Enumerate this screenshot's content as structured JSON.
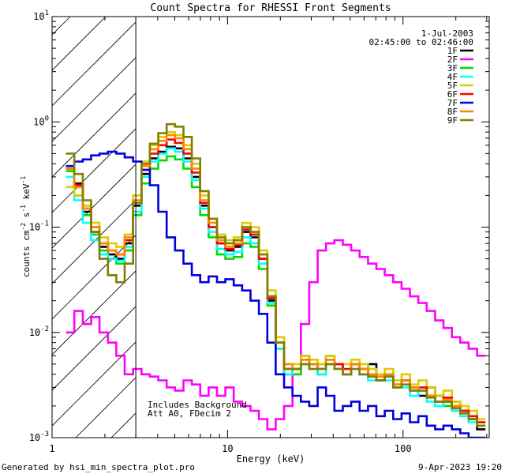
{
  "chart_data": {
    "type": "line",
    "title": "Count Spectra for RHESSI Front Segments",
    "xlabel": "Energy (keV)",
    "ylabel": "counts cm",
    "ylabel_sup1": "-2",
    "ylabel_mid": " s",
    "ylabel_sup2": "-1",
    "ylabel_end": " keV",
    "ylabel_sup3": "-1",
    "x_scale": "log",
    "y_scale": "log",
    "xlim": [
      1.0,
      310
    ],
    "ylim": [
      0.001,
      10
    ],
    "x_ticks": [
      "1",
      "10",
      "100"
    ],
    "y_ticks": [
      {
        "base": "10",
        "exp": "-3"
      },
      {
        "base": "10",
        "exp": "-2"
      },
      {
        "base": "10",
        "exp": "-1"
      },
      {
        "base": "10",
        "exp": "0"
      },
      {
        "base": "10",
        "exp": "1"
      }
    ],
    "date": "1-Jul-2003",
    "time_range": "02:45:00 to 02:46:00",
    "annotations": [
      "Includes Background",
      "Att A0, FDecim 2"
    ],
    "hatched_region_keV": [
      1.0,
      3.0
    ],
    "footer_left": "Generated by hsi_min_spectra_plot.pro",
    "footer_right": "9-Apr-2023 19:20",
    "series": [
      {
        "name": "1F",
        "color": "#000000",
        "values": [
          0.36,
          0.26,
          0.14,
          0.09,
          0.065,
          0.055,
          0.05,
          0.07,
          0.16,
          0.32,
          0.45,
          0.52,
          0.58,
          0.56,
          0.45,
          0.3,
          0.16,
          0.1,
          0.07,
          0.06,
          0.065,
          0.09,
          0.08,
          0.05,
          0.02,
          0.008,
          0.004,
          0.0045,
          0.006,
          0.005,
          0.004,
          0.006,
          0.005,
          0.004,
          0.005,
          0.004,
          0.005,
          0.0035,
          0.004,
          0.003,
          0.0035,
          0.003,
          0.0025,
          0.003,
          0.0025,
          0.0022,
          0.002,
          0.0018,
          0.0015,
          0.0012
        ]
      },
      {
        "name": "2F",
        "color": "#ff00ff",
        "values": [
          0.01,
          0.016,
          0.012,
          0.014,
          0.01,
          0.008,
          0.006,
          0.004,
          0.0045,
          0.004,
          0.0038,
          0.0035,
          0.003,
          0.0028,
          0.0035,
          0.0032,
          0.0025,
          0.003,
          0.0025,
          0.003,
          0.0022,
          0.002,
          0.0018,
          0.0015,
          0.0012,
          0.0015,
          0.002,
          0.004,
          0.012,
          0.03,
          0.06,
          0.07,
          0.075,
          0.068,
          0.06,
          0.052,
          0.045,
          0.04,
          0.035,
          0.03,
          0.026,
          0.022,
          0.019,
          0.016,
          0.013,
          0.011,
          0.009,
          0.008,
          0.007,
          0.006
        ]
      },
      {
        "name": "3F",
        "color": "#00dd00",
        "values": [
          0.34,
          0.2,
          0.13,
          0.085,
          0.06,
          0.05,
          0.045,
          0.06,
          0.13,
          0.26,
          0.36,
          0.43,
          0.47,
          0.44,
          0.36,
          0.24,
          0.13,
          0.08,
          0.055,
          0.05,
          0.052,
          0.07,
          0.065,
          0.04,
          0.018,
          0.007,
          0.0045,
          0.004,
          0.005,
          0.0045,
          0.005,
          0.006,
          0.0045,
          0.004,
          0.005,
          0.0045,
          0.004,
          0.0035,
          0.004,
          0.003,
          0.0035,
          0.0028,
          0.003,
          0.0025,
          0.0022,
          0.002,
          0.0022,
          0.0018,
          0.0016,
          0.0014
        ]
      },
      {
        "name": "4F",
        "color": "#00ffff",
        "values": [
          0.3,
          0.18,
          0.11,
          0.075,
          0.055,
          0.05,
          0.048,
          0.065,
          0.14,
          0.3,
          0.42,
          0.5,
          0.56,
          0.52,
          0.42,
          0.28,
          0.15,
          0.09,
          0.062,
          0.055,
          0.058,
          0.08,
          0.07,
          0.045,
          0.019,
          0.007,
          0.004,
          0.0045,
          0.005,
          0.0045,
          0.004,
          0.005,
          0.0045,
          0.004,
          0.0045,
          0.004,
          0.0035,
          0.004,
          0.0035,
          0.003,
          0.003,
          0.0025,
          0.0028,
          0.0022,
          0.002,
          0.0022,
          0.0018,
          0.0016,
          0.0014,
          0.0013
        ]
      },
      {
        "name": "5F",
        "color": "#ddcc00",
        "values": [
          0.24,
          0.2,
          0.16,
          0.11,
          0.08,
          0.07,
          0.065,
          0.085,
          0.2,
          0.42,
          0.6,
          0.72,
          0.8,
          0.75,
          0.6,
          0.4,
          0.2,
          0.12,
          0.085,
          0.075,
          0.08,
          0.11,
          0.1,
          0.06,
          0.025,
          0.009,
          0.005,
          0.005,
          0.006,
          0.0055,
          0.005,
          0.006,
          0.005,
          0.005,
          0.0055,
          0.005,
          0.0045,
          0.004,
          0.0045,
          0.0035,
          0.004,
          0.0032,
          0.0035,
          0.003,
          0.0025,
          0.0028,
          0.0022,
          0.002,
          0.0018,
          0.0015
        ]
      },
      {
        "name": "6F",
        "color": "#ff0000",
        "values": [
          0.36,
          0.25,
          0.15,
          0.1,
          0.07,
          0.06,
          0.055,
          0.075,
          0.17,
          0.35,
          0.5,
          0.6,
          0.68,
          0.63,
          0.5,
          0.33,
          0.17,
          0.1,
          0.07,
          0.062,
          0.068,
          0.095,
          0.085,
          0.05,
          0.021,
          0.008,
          0.0045,
          0.0045,
          0.0055,
          0.005,
          0.0045,
          0.0055,
          0.005,
          0.0045,
          0.005,
          0.0045,
          0.004,
          0.0035,
          0.004,
          0.0032,
          0.0035,
          0.003,
          0.003,
          0.0025,
          0.0022,
          0.0024,
          0.002,
          0.0018,
          0.0016,
          0.0014
        ]
      },
      {
        "name": "7F",
        "color": "#0000dd",
        "values": [
          0.38,
          0.42,
          0.44,
          0.48,
          0.5,
          0.52,
          0.5,
          0.46,
          0.42,
          0.35,
          0.25,
          0.14,
          0.08,
          0.06,
          0.045,
          0.035,
          0.03,
          0.034,
          0.03,
          0.032,
          0.028,
          0.025,
          0.02,
          0.015,
          0.008,
          0.004,
          0.003,
          0.0025,
          0.0022,
          0.002,
          0.003,
          0.0025,
          0.0018,
          0.002,
          0.0022,
          0.0018,
          0.002,
          0.0016,
          0.0018,
          0.0015,
          0.0017,
          0.0014,
          0.0016,
          0.0013,
          0.0012,
          0.0013,
          0.0012,
          0.0011,
          0.001,
          0.001
        ]
      },
      {
        "name": "8F",
        "color": "#ff8800",
        "values": [
          0.36,
          0.24,
          0.15,
          0.1,
          0.07,
          0.06,
          0.055,
          0.08,
          0.18,
          0.38,
          0.55,
          0.66,
          0.75,
          0.7,
          0.55,
          0.36,
          0.18,
          0.11,
          0.075,
          0.065,
          0.07,
          0.1,
          0.09,
          0.055,
          0.022,
          0.008,
          0.005,
          0.0045,
          0.0055,
          0.005,
          0.0045,
          0.0055,
          0.0045,
          0.004,
          0.005,
          0.0045,
          0.004,
          0.0038,
          0.004,
          0.0032,
          0.0035,
          0.003,
          0.0028,
          0.0025,
          0.0022,
          0.0023,
          0.002,
          0.0017,
          0.0015,
          0.0013
        ]
      },
      {
        "name": "9F",
        "color": "#808000",
        "values": [
          0.5,
          0.32,
          0.18,
          0.09,
          0.05,
          0.035,
          0.03,
          0.045,
          0.17,
          0.4,
          0.62,
          0.78,
          0.95,
          0.9,
          0.72,
          0.45,
          0.22,
          0.12,
          0.08,
          0.07,
          0.075,
          0.1,
          0.09,
          0.055,
          0.022,
          0.008,
          0.0045,
          0.0045,
          0.005,
          0.0045,
          0.0045,
          0.005,
          0.0045,
          0.004,
          0.0045,
          0.004,
          0.0038,
          0.0035,
          0.0038,
          0.003,
          0.0032,
          0.0028,
          0.0028,
          0.0024,
          0.0022,
          0.0022,
          0.0019,
          0.0017,
          0.0015,
          0.0013
        ]
      }
    ]
  }
}
